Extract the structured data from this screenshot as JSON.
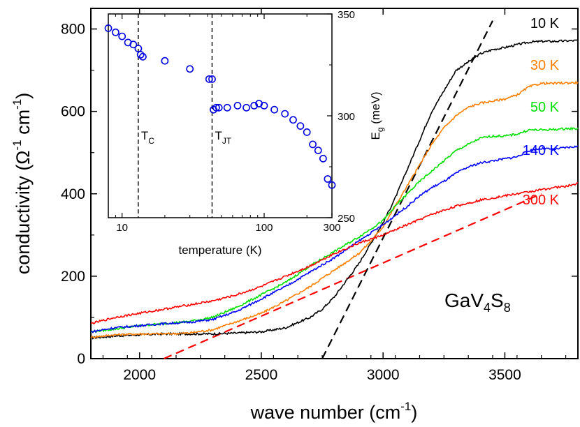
{
  "chart_data": {
    "type": "line",
    "xlabel": "wave number (cm",
    "xlabel_sup": "-1",
    "xlabel_end": ")",
    "ylabel": "conductivity (Ω",
    "ylabel_sup1": "-1",
    "ylabel_mid": " cm",
    "ylabel_sup2": "-1",
    "ylabel_end": ")",
    "xlim": [
      1800,
      3800
    ],
    "ylim": [
      0,
      850
    ],
    "x_ticks": [
      2000,
      2500,
      3000,
      3500
    ],
    "y_ticks": [
      0,
      200,
      400,
      600,
      800
    ],
    "annotation": {
      "text": "GaV",
      "sub1": "4",
      "mid": "S",
      "sub2": "8"
    },
    "series": [
      {
        "name": "10 K",
        "color": "#000000",
        "x": [
          1800,
          1900,
          2000,
          2100,
          2200,
          2300,
          2400,
          2500,
          2600,
          2700,
          2750,
          2800,
          2850,
          2900,
          2950,
          3000,
          3050,
          3100,
          3150,
          3200,
          3250,
          3300,
          3350,
          3400,
          3450,
          3500,
          3550,
          3600,
          3650,
          3700,
          3750,
          3800
        ],
        "y": [
          50,
          55,
          58,
          60,
          60,
          60,
          62,
          65,
          75,
          100,
          120,
          150,
          190,
          230,
          280,
          330,
          390,
          460,
          530,
          600,
          650,
          700,
          720,
          740,
          750,
          755,
          762,
          768,
          770,
          770,
          771,
          772
        ]
      },
      {
        "name": "30 K",
        "color": "#ff8000",
        "x": [
          1800,
          1900,
          2000,
          2100,
          2200,
          2300,
          2400,
          2500,
          2600,
          2700,
          2800,
          2900,
          2950,
          3000,
          3050,
          3100,
          3150,
          3200,
          3250,
          3300,
          3350,
          3400,
          3450,
          3500,
          3550,
          3600,
          3650,
          3700,
          3750,
          3800
        ],
        "y": [
          52,
          58,
          60,
          60,
          62,
          70,
          90,
          110,
          140,
          175,
          215,
          255,
          285,
          320,
          370,
          420,
          470,
          520,
          560,
          590,
          610,
          620,
          625,
          630,
          640,
          660,
          668,
          668,
          669,
          670
        ]
      },
      {
        "name": "50 K",
        "color": "#00e000",
        "x": [
          1800,
          1900,
          2000,
          2100,
          2200,
          2300,
          2400,
          2500,
          2600,
          2700,
          2800,
          2900,
          3000,
          3050,
          3100,
          3150,
          3200,
          3250,
          3300,
          3350,
          3400,
          3450,
          3500,
          3550,
          3600,
          3650,
          3700,
          3750,
          3800
        ],
        "y": [
          65,
          72,
          80,
          85,
          90,
          100,
          125,
          155,
          185,
          225,
          260,
          295,
          335,
          370,
          400,
          430,
          455,
          480,
          505,
          520,
          535,
          540,
          540,
          545,
          555,
          555,
          556,
          558,
          558
        ]
      },
      {
        "name": "140 K",
        "color": "#0000ff",
        "x": [
          1800,
          1900,
          2000,
          2100,
          2200,
          2300,
          2400,
          2500,
          2600,
          2700,
          2800,
          2900,
          3000,
          3100,
          3150,
          3200,
          3250,
          3300,
          3350,
          3400,
          3450,
          3500,
          3550,
          3600,
          3650,
          3700,
          3750,
          3800
        ],
        "y": [
          65,
          75,
          80,
          85,
          88,
          95,
          115,
          145,
          175,
          210,
          245,
          285,
          325,
          370,
          395,
          415,
          430,
          450,
          465,
          475,
          480,
          485,
          490,
          505,
          510,
          508,
          512,
          515
        ]
      },
      {
        "name": "300 K",
        "color": "#ff0000",
        "x": [
          1800,
          1900,
          2000,
          2100,
          2200,
          2300,
          2400,
          2500,
          2600,
          2700,
          2800,
          2900,
          3000,
          3100,
          3200,
          3300,
          3400,
          3450,
          3500,
          3550,
          3600,
          3650,
          3700,
          3750,
          3800
        ],
        "y": [
          85,
          100,
          110,
          120,
          130,
          140,
          155,
          175,
          200,
          225,
          255,
          280,
          300,
          325,
          350,
          370,
          385,
          390,
          395,
          400,
          405,
          410,
          415,
          418,
          425
        ]
      }
    ],
    "fit_lines": [
      {
        "color": "#000000",
        "x": [
          2750,
          3450
        ],
        "y": [
          0,
          820
        ]
      },
      {
        "color": "#ff0000",
        "x": [
          2100,
          3650
        ],
        "y": [
          0,
          400
        ]
      }
    ],
    "inset": {
      "type": "scatter",
      "xlabel": "temperature (K)",
      "ylabel": "E",
      "ylabel_sub": "g",
      "ylabel_end": " (meV)",
      "x_scale": "log",
      "xlim": [
        8,
        300
      ],
      "ylim": [
        250,
        350
      ],
      "x_ticks": [
        10,
        100,
        300
      ],
      "y_ticks": [
        250,
        300,
        350
      ],
      "marker_color": "#0000dd",
      "vlines": [
        {
          "x": 13,
          "label": "T",
          "sub": "C"
        },
        {
          "x": 43,
          "label": "T",
          "sub": "JT"
        }
      ],
      "points": {
        "x": [
          8,
          9,
          10,
          11,
          12,
          13,
          13.5,
          14,
          20,
          30,
          41,
          43,
          44,
          46,
          48,
          55,
          65,
          75,
          85,
          92,
          100,
          118,
          140,
          160,
          180,
          200,
          220,
          240,
          260,
          280,
          300
        ],
        "y": [
          343,
          341,
          339,
          336,
          335,
          333,
          330,
          329,
          327,
          323,
          318,
          318,
          303,
          304,
          304,
          304,
          305,
          304,
          305,
          306,
          305,
          303,
          301,
          298,
          295,
          292,
          286,
          283,
          279,
          269,
          266
        ]
      }
    }
  }
}
